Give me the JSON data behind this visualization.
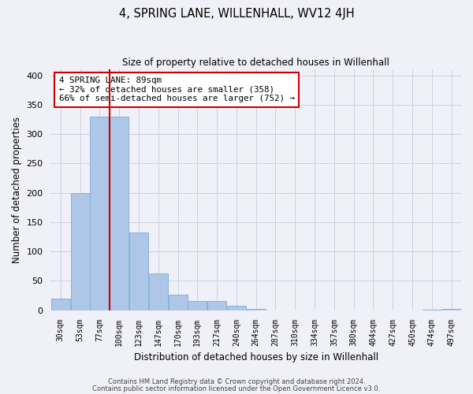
{
  "title": "4, SPRING LANE, WILLENHALL, WV12 4JH",
  "subtitle": "Size of property relative to detached houses in Willenhall",
  "xlabel": "Distribution of detached houses by size in Willenhall",
  "ylabel": "Number of detached properties",
  "bin_labels": [
    "30sqm",
    "53sqm",
    "77sqm",
    "100sqm",
    "123sqm",
    "147sqm",
    "170sqm",
    "193sqm",
    "217sqm",
    "240sqm",
    "264sqm",
    "287sqm",
    "310sqm",
    "334sqm",
    "357sqm",
    "380sqm",
    "404sqm",
    "427sqm",
    "450sqm",
    "474sqm",
    "497sqm"
  ],
  "bar_heights": [
    20,
    200,
    330,
    330,
    133,
    62,
    27,
    16,
    16,
    8,
    2,
    0,
    0,
    0,
    0,
    0,
    0,
    0,
    0,
    1,
    2
  ],
  "bar_color": "#aec6e8",
  "bar_edge_color": "#7aafd4",
  "vline_x_index": 2,
  "vline_color": "#cc0000",
  "annotation_title": "4 SPRING LANE: 89sqm",
  "annotation_line1": "← 32% of detached houses are smaller (358)",
  "annotation_line2": "66% of semi-detached houses are larger (752) →",
  "annotation_box_color": "#ffffff",
  "annotation_box_edge": "#cc0000",
  "ylim": [
    0,
    410
  ],
  "yticks": [
    0,
    50,
    100,
    150,
    200,
    250,
    300,
    350,
    400
  ],
  "footer_line1": "Contains HM Land Registry data © Crown copyright and database right 2024.",
  "footer_line2": "Contains public sector information licensed under the Open Government Licence v3.0.",
  "bg_color": "#f0f0f8",
  "grid_color": "#d0d0e0"
}
